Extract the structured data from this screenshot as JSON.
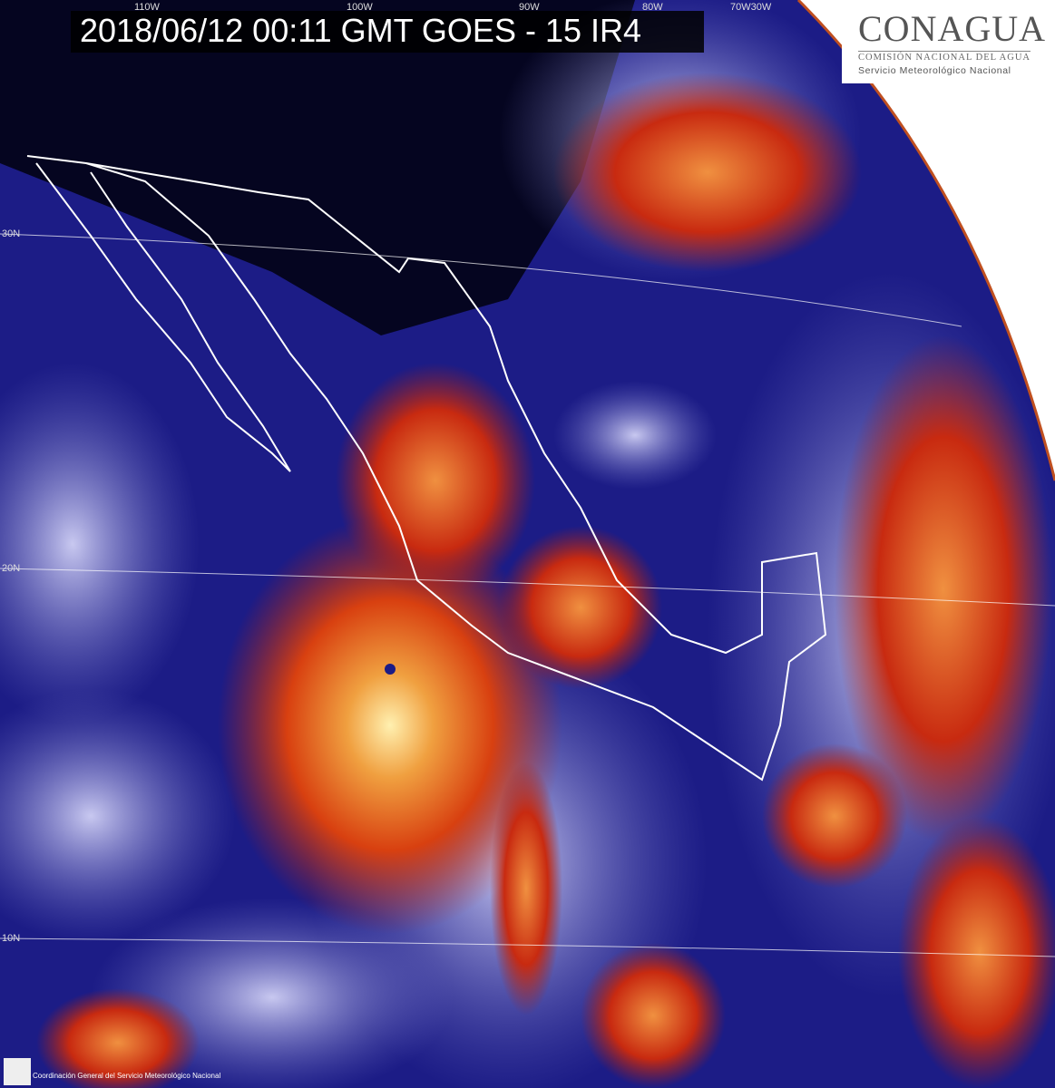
{
  "header": {
    "title": "2018/06/12 00:11 GMT GOES - 15 IR4"
  },
  "logo": {
    "name": "CONAGUA",
    "subtitle": "COMISIÓN NACIONAL DEL AGUA",
    "service": "Servicio Meteorológico Nacional"
  },
  "grid_labels": {
    "lon": [
      "110W",
      "100W",
      "90W",
      "80W",
      "70W30W"
    ],
    "lat": [
      "30N",
      "20N",
      "10N"
    ]
  },
  "footer": {
    "credit": "Coordinación General del Servicio Meteorológico Nacional"
  },
  "colors": {
    "ocean": "#1c1c86",
    "cold_cloud": "#d63a10",
    "coldest_cloud": "#f5c060",
    "space": "#ffffff"
  }
}
